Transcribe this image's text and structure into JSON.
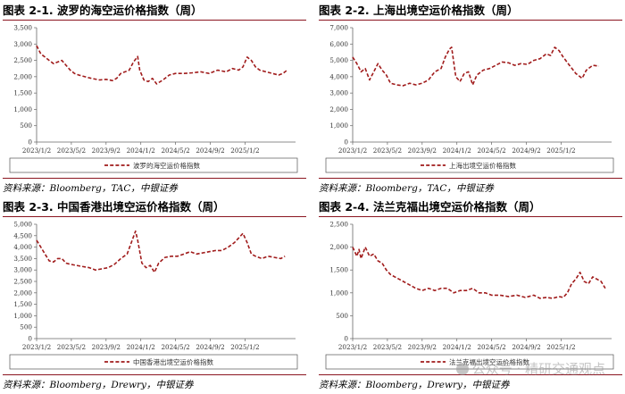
{
  "source_labels": {
    "tac": "资料来源：Bloomberg，TAC，中银证券",
    "drewry": "资料来源：Bloomberg，Drewry，中银证券"
  },
  "colors": {
    "series": "#a01b1b",
    "accent": "#8b1520"
  },
  "watermark": "公众号 · 精研交通观点",
  "charts": [
    {
      "title": "图表 2-1. 波罗的海空运价格指数（周）",
      "chart_data": {
        "type": "line",
        "xlabel": "",
        "ylabel": "",
        "ylim": [
          0,
          3500
        ],
        "yticks": [
          0,
          500,
          1000,
          1500,
          2000,
          2500,
          3000,
          3500
        ],
        "ytick_labels": [
          "0",
          "500",
          "1,000",
          "1,500",
          "2,000",
          "2,500",
          "3,000",
          "3,500"
        ],
        "x_ticks": [
          "2023/1/2",
          "2023/5/2",
          "2023/9/2",
          "2024/1/2",
          "2024/5/2",
          "2024/9/2",
          "2025/1/2"
        ],
        "x_range": [
          0,
          123
        ],
        "grid": false,
        "legend_position": "bottom",
        "series": [
          {
            "name": "波罗的海空运价格指数",
            "style": "dashed",
            "points": [
              [
                0,
                2950
              ],
              [
                2,
                2700
              ],
              [
                4,
                2600
              ],
              [
                6,
                2500
              ],
              [
                8,
                2400
              ],
              [
                10,
                2450
              ],
              [
                12,
                2500
              ],
              [
                14,
                2350
              ],
              [
                16,
                2200
              ],
              [
                18,
                2100
              ],
              [
                20,
                2050
              ],
              [
                23,
                2000
              ],
              [
                26,
                1950
              ],
              [
                30,
                1900
              ],
              [
                33,
                1920
              ],
              [
                36,
                1880
              ],
              [
                38,
                1950
              ],
              [
                40,
                2100
              ],
              [
                42,
                2150
              ],
              [
                44,
                2200
              ],
              [
                46,
                2450
              ],
              [
                48,
                2620
              ],
              [
                49,
                2200
              ],
              [
                51,
                1900
              ],
              [
                53,
                1850
              ],
              [
                55,
                1950
              ],
              [
                57,
                1780
              ],
              [
                60,
                1900
              ],
              [
                63,
                2050
              ],
              [
                66,
                2100
              ],
              [
                70,
                2100
              ],
              [
                74,
                2120
              ],
              [
                78,
                2150
              ],
              [
                82,
                2100
              ],
              [
                86,
                2200
              ],
              [
                90,
                2150
              ],
              [
                93,
                2250
              ],
              [
                96,
                2200
              ],
              [
                98,
                2300
              ],
              [
                100,
                2600
              ],
              [
                102,
                2500
              ],
              [
                104,
                2300
              ],
              [
                106,
                2200
              ],
              [
                109,
                2150
              ],
              [
                112,
                2100
              ],
              [
                115,
                2050
              ],
              [
                117,
                2100
              ],
              [
                119,
                2200
              ]
            ]
          }
        ]
      }
    },
    {
      "title": "图表 2-2. 上海出境空运价格指数（周）",
      "chart_data": {
        "type": "line",
        "xlabel": "",
        "ylabel": "",
        "ylim": [
          0,
          7000
        ],
        "yticks": [
          0,
          1000,
          2000,
          3000,
          4000,
          5000,
          6000,
          7000
        ],
        "ytick_labels": [
          "0",
          "1,000",
          "2,000",
          "3,000",
          "4,000",
          "5,000",
          "6,000",
          "7,000"
        ],
        "x_ticks": [
          "2023/1/2",
          "2023/5/2",
          "2023/9/2",
          "2024/1/2",
          "2024/5/2",
          "2024/9/2",
          "2025/1/2"
        ],
        "x_range": [
          0,
          123
        ],
        "grid": false,
        "legend_position": "bottom",
        "series": [
          {
            "name": "上海出境空运价格指数",
            "style": "dashed",
            "points": [
              [
                0,
                5200
              ],
              [
                2,
                4800
              ],
              [
                4,
                4300
              ],
              [
                6,
                4500
              ],
              [
                8,
                3800
              ],
              [
                10,
                4300
              ],
              [
                12,
                4800
              ],
              [
                14,
                4400
              ],
              [
                16,
                4100
              ],
              [
                18,
                3600
              ],
              [
                21,
                3500
              ],
              [
                24,
                3450
              ],
              [
                27,
                3600
              ],
              [
                30,
                3500
              ],
              [
                33,
                3600
              ],
              [
                36,
                3800
              ],
              [
                39,
                4300
              ],
              [
                42,
                4500
              ],
              [
                44,
                5200
              ],
              [
                46,
                5700
              ],
              [
                47,
                5800
              ],
              [
                49,
                4000
              ],
              [
                51,
                3700
              ],
              [
                53,
                4200
              ],
              [
                55,
                4300
              ],
              [
                57,
                3500
              ],
              [
                59,
                4100
              ],
              [
                62,
                4400
              ],
              [
                65,
                4500
              ],
              [
                68,
                4700
              ],
              [
                71,
                4900
              ],
              [
                74,
                4850
              ],
              [
                77,
                4700
              ],
              [
                80,
                4800
              ],
              [
                83,
                4750
              ],
              [
                86,
                5000
              ],
              [
                89,
                5100
              ],
              [
                92,
                5400
              ],
              [
                94,
                5300
              ],
              [
                96,
                5800
              ],
              [
                98,
                5600
              ],
              [
                100,
                5200
              ],
              [
                103,
                4700
              ],
              [
                106,
                4200
              ],
              [
                109,
                3900
              ],
              [
                111,
                4400
              ],
              [
                114,
                4700
              ],
              [
                117,
                4650
              ]
            ]
          }
        ]
      }
    },
    {
      "title": "图表 2-3. 中国香港出境空运价格指数（周）",
      "chart_data": {
        "type": "line",
        "xlabel": "",
        "ylabel": "",
        "ylim": [
          0,
          5000
        ],
        "yticks": [
          0,
          500,
          1000,
          1500,
          2000,
          2500,
          3000,
          3500,
          4000,
          4500,
          5000
        ],
        "ytick_labels": [
          "0",
          "500",
          "1,000",
          "1,500",
          "2,000",
          "2,500",
          "3,000",
          "3,500",
          "4,000",
          "4,500",
          "5,000"
        ],
        "x_ticks": [
          "2023/1/2",
          "2023/5/2",
          "2023/9/2",
          "2024/1/2",
          "2024/5/2",
          "2024/9/2",
          "2025/1/2"
        ],
        "x_range": [
          0,
          123
        ],
        "grid": false,
        "legend_position": "bottom",
        "series": [
          {
            "name": "中国香港出境空运价格指数",
            "style": "dashed",
            "points": [
              [
                0,
                4300
              ],
              [
                2,
                4000
              ],
              [
                4,
                3700
              ],
              [
                6,
                3400
              ],
              [
                8,
                3350
              ],
              [
                10,
                3500
              ],
              [
                12,
                3500
              ],
              [
                14,
                3300
              ],
              [
                16,
                3250
              ],
              [
                19,
                3200
              ],
              [
                22,
                3150
              ],
              [
                25,
                3100
              ],
              [
                28,
                3000
              ],
              [
                31,
                3050
              ],
              [
                34,
                3100
              ],
              [
                37,
                3250
              ],
              [
                40,
                3500
              ],
              [
                43,
                3700
              ],
              [
                45,
                4200
              ],
              [
                47,
                4700
              ],
              [
                48,
                4300
              ],
              [
                50,
                3300
              ],
              [
                52,
                3100
              ],
              [
                54,
                3200
              ],
              [
                56,
                2900
              ],
              [
                58,
                3300
              ],
              [
                61,
                3550
              ],
              [
                64,
                3600
              ],
              [
                67,
                3600
              ],
              [
                70,
                3700
              ],
              [
                73,
                3800
              ],
              [
                76,
                3700
              ],
              [
                79,
                3750
              ],
              [
                82,
                3800
              ],
              [
                85,
                3850
              ],
              [
                88,
                3850
              ],
              [
                91,
                4000
              ],
              [
                94,
                4200
              ],
              [
                96,
                4400
              ],
              [
                98,
                4600
              ],
              [
                100,
                4200
              ],
              [
                102,
                3700
              ],
              [
                104,
                3600
              ],
              [
                107,
                3500
              ],
              [
                110,
                3600
              ],
              [
                113,
                3550
              ],
              [
                116,
                3500
              ],
              [
                118,
                3600
              ]
            ]
          }
        ]
      }
    },
    {
      "title": "图表 2-4. 法兰克福出境空运价格指数（周）",
      "chart_data": {
        "type": "line",
        "xlabel": "",
        "ylabel": "",
        "ylim": [
          0,
          2500
        ],
        "yticks": [
          0,
          500,
          1000,
          1500,
          2000,
          2500
        ],
        "ytick_labels": [
          "0",
          "500",
          "1,000",
          "1,500",
          "2,000",
          "2,500"
        ],
        "x_ticks": [
          "2023/1/2",
          "2023/5/2",
          "2023/9/2",
          "2024/1/2",
          "2024/5/2",
          "2024/9/2",
          "2025/1/2"
        ],
        "x_range": [
          0,
          123
        ],
        "grid": false,
        "legend_position": "bottom",
        "series": [
          {
            "name": "法兰克福出境空运价格指数",
            "style": "dashed",
            "points": [
              [
                0,
                2000
              ],
              [
                2,
                1800
              ],
              [
                3,
                1950
              ],
              [
                4,
                1750
              ],
              [
                6,
                2000
              ],
              [
                8,
                1800
              ],
              [
                10,
                1850
              ],
              [
                12,
                1700
              ],
              [
                14,
                1650
              ],
              [
                16,
                1500
              ],
              [
                18,
                1400
              ],
              [
                20,
                1350
              ],
              [
                22,
                1300
              ],
              [
                24,
                1250
              ],
              [
                26,
                1200
              ],
              [
                28,
                1150
              ],
              [
                30,
                1100
              ],
              [
                33,
                1050
              ],
              [
                36,
                1100
              ],
              [
                39,
                1050
              ],
              [
                42,
                1100
              ],
              [
                45,
                1100
              ],
              [
                48,
                1000
              ],
              [
                51,
                1050
              ],
              [
                54,
                1050
              ],
              [
                57,
                1100
              ],
              [
                60,
                1000
              ],
              [
                63,
                1000
              ],
              [
                66,
                950
              ],
              [
                70,
                950
              ],
              [
                74,
                920
              ],
              [
                78,
                950
              ],
              [
                82,
                900
              ],
              [
                86,
                950
              ],
              [
                89,
                880
              ],
              [
                92,
                900
              ],
              [
                95,
                880
              ],
              [
                98,
                920
              ],
              [
                100,
                900
              ],
              [
                102,
                1000
              ],
              [
                104,
                1200
              ],
              [
                106,
                1300
              ],
              [
                108,
                1450
              ],
              [
                110,
                1250
              ],
              [
                112,
                1200
              ],
              [
                114,
                1350
              ],
              [
                116,
                1300
              ],
              [
                118,
                1250
              ],
              [
                120,
                1100
              ]
            ]
          }
        ]
      }
    }
  ]
}
